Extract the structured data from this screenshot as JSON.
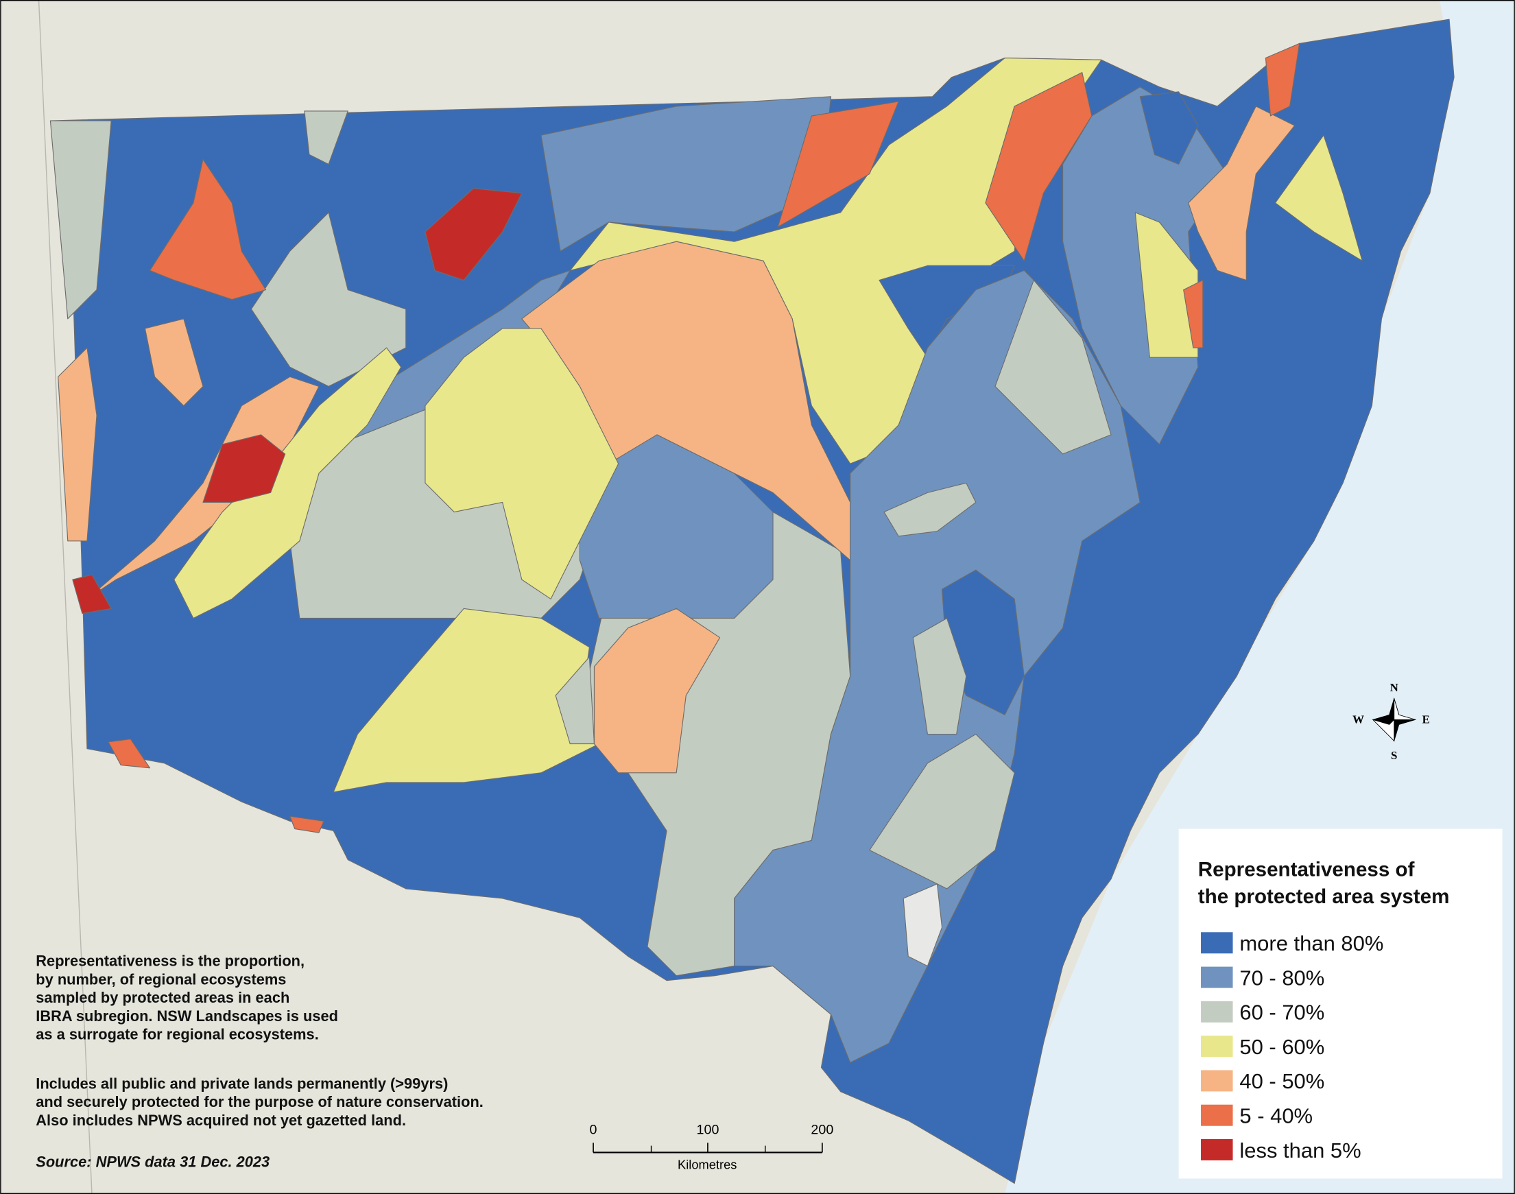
{
  "legend": {
    "title": [
      "Representativeness of",
      "the protected area system"
    ],
    "items": [
      {
        "label": "more than 80%",
        "color": "#3a6cb6"
      },
      {
        "label": "70 - 80%",
        "color": "#6f93be"
      },
      {
        "label": "60 - 70%",
        "color": "#c3ccc1"
      },
      {
        "label": "50 - 60%",
        "color": "#e8e78c"
      },
      {
        "label": "40 - 50%",
        "color": "#f6b484"
      },
      {
        "label": "5 - 40%",
        "color": "#eb6f48"
      },
      {
        "label": "less than 5%",
        "color": "#c42b28"
      }
    ]
  },
  "notes": {
    "paragraph_1": [
      "Representativeness is the proportion,",
      "by number, of regional ecosystems",
      "sampled by protected areas in each",
      "IBRA subregion. NSW Landscapes is used",
      "as a surrogate for regional ecosystems."
    ],
    "paragraph_2": [
      "Includes all public and private lands permanently (>99yrs)",
      "and securely protected for the purpose of nature conservation.",
      "Also includes NPWS acquired not yet gazetted land."
    ],
    "source": "Source: NPWS data 31 Dec. 2023"
  },
  "scale_bar": {
    "ticks": [
      0,
      100,
      200
    ],
    "unit": "Kilometres"
  },
  "compass": {
    "north": "N",
    "south": "S",
    "east": "E",
    "west": "W"
  }
}
